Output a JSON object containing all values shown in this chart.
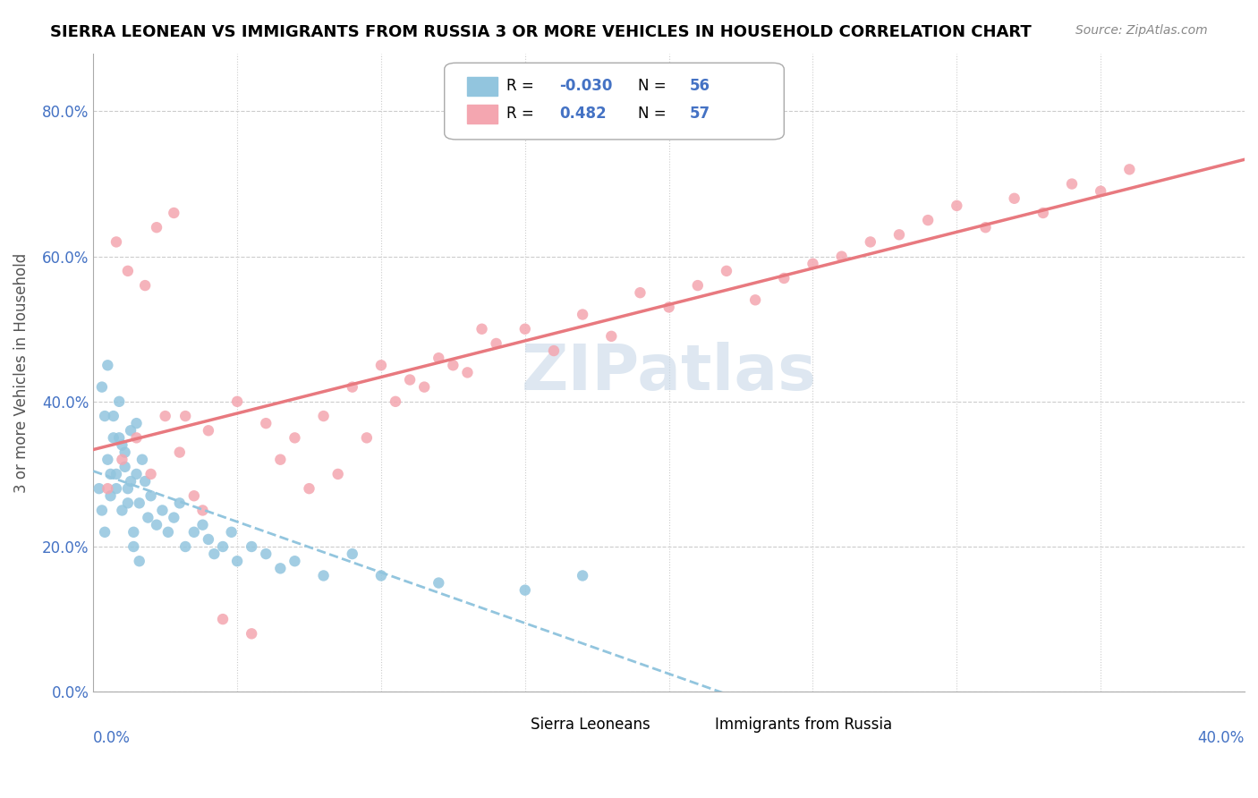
{
  "title": "SIERRA LEONEAN VS IMMIGRANTS FROM RUSSIA 3 OR MORE VEHICLES IN HOUSEHOLD CORRELATION CHART",
  "source": "Source: ZipAtlas.com",
  "ylabel": "3 or more Vehicles in Household",
  "ytick_vals": [
    0.0,
    0.2,
    0.4,
    0.6,
    0.8
  ],
  "ytick_labels": [
    "0.0%",
    "20.0%",
    "40.0%",
    "60.0%",
    "80.0%"
  ],
  "xrange": [
    0.0,
    0.4
  ],
  "yrange": [
    0.0,
    0.88
  ],
  "blue_color": "#92c5de",
  "pink_color": "#f4a6b0",
  "pink_line_color": "#e8797f",
  "text_color": "#4472c4",
  "watermark_color": "#c8d8e8",
  "legend_r1_val": "-0.030",
  "legend_r1_n": "56",
  "legend_r2_val": "0.482",
  "legend_r2_n": "57",
  "sierra_x": [
    0.002,
    0.004,
    0.005,
    0.006,
    0.007,
    0.008,
    0.009,
    0.01,
    0.011,
    0.012,
    0.013,
    0.014,
    0.015,
    0.016,
    0.018,
    0.019,
    0.02,
    0.022,
    0.024,
    0.026,
    0.028,
    0.03,
    0.032,
    0.035,
    0.038,
    0.04,
    0.042,
    0.045,
    0.048,
    0.05,
    0.055,
    0.06,
    0.065,
    0.07,
    0.08,
    0.09,
    0.1,
    0.12,
    0.15,
    0.17,
    0.003,
    0.005,
    0.007,
    0.009,
    0.011,
    0.013,
    0.015,
    0.017,
    0.003,
    0.004,
    0.006,
    0.008,
    0.01,
    0.012,
    0.014,
    0.016
  ],
  "sierra_y": [
    0.28,
    0.38,
    0.32,
    0.27,
    0.35,
    0.3,
    0.4,
    0.25,
    0.33,
    0.28,
    0.36,
    0.22,
    0.3,
    0.26,
    0.29,
    0.24,
    0.27,
    0.23,
    0.25,
    0.22,
    0.24,
    0.26,
    0.2,
    0.22,
    0.23,
    0.21,
    0.19,
    0.2,
    0.22,
    0.18,
    0.2,
    0.19,
    0.17,
    0.18,
    0.16,
    0.19,
    0.16,
    0.15,
    0.14,
    0.16,
    0.42,
    0.45,
    0.38,
    0.35,
    0.31,
    0.29,
    0.37,
    0.32,
    0.25,
    0.22,
    0.3,
    0.28,
    0.34,
    0.26,
    0.2,
    0.18
  ],
  "russia_x": [
    0.005,
    0.01,
    0.015,
    0.02,
    0.025,
    0.03,
    0.035,
    0.04,
    0.05,
    0.06,
    0.07,
    0.08,
    0.09,
    0.1,
    0.11,
    0.12,
    0.13,
    0.14,
    0.15,
    0.16,
    0.17,
    0.18,
    0.19,
    0.2,
    0.21,
    0.22,
    0.23,
    0.24,
    0.25,
    0.26,
    0.27,
    0.28,
    0.29,
    0.3,
    0.31,
    0.32,
    0.33,
    0.34,
    0.35,
    0.36,
    0.008,
    0.012,
    0.018,
    0.022,
    0.028,
    0.032,
    0.038,
    0.045,
    0.055,
    0.065,
    0.075,
    0.085,
    0.095,
    0.105,
    0.115,
    0.125,
    0.135
  ],
  "russia_y": [
    0.28,
    0.32,
    0.35,
    0.3,
    0.38,
    0.33,
    0.27,
    0.36,
    0.4,
    0.37,
    0.35,
    0.38,
    0.42,
    0.45,
    0.43,
    0.46,
    0.44,
    0.48,
    0.5,
    0.47,
    0.52,
    0.49,
    0.55,
    0.53,
    0.56,
    0.58,
    0.54,
    0.57,
    0.59,
    0.6,
    0.62,
    0.63,
    0.65,
    0.67,
    0.64,
    0.68,
    0.66,
    0.7,
    0.69,
    0.72,
    0.62,
    0.58,
    0.56,
    0.64,
    0.66,
    0.38,
    0.25,
    0.1,
    0.08,
    0.32,
    0.28,
    0.3,
    0.35,
    0.4,
    0.42,
    0.45,
    0.5
  ]
}
